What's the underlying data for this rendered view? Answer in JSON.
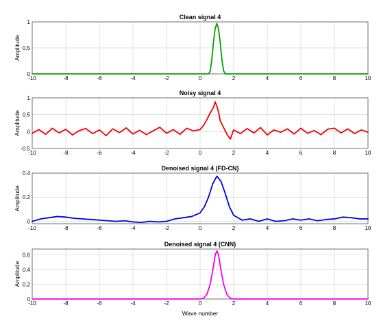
{
  "chart_data": [
    {
      "type": "line",
      "title": "Clean signal 4",
      "ylabel": "Amplitude",
      "xlabel": "",
      "xlim": [
        -10,
        10
      ],
      "ylim": [
        0,
        1
      ],
      "xticks": [
        -10,
        -8,
        -6,
        -4,
        -2,
        0,
        2,
        4,
        6,
        8,
        10
      ],
      "yticks": [
        0,
        0.5,
        1
      ],
      "ytick_labels": [
        "0",
        "0.5",
        "1"
      ],
      "grid": true,
      "color": "#00a000",
      "series": [
        {
          "x": [
            -10,
            0.5,
            0.6,
            0.7,
            0.8,
            0.9,
            1.0,
            1.1,
            1.2,
            1.3,
            1.4,
            1.5,
            10
          ],
          "y": [
            0,
            0,
            0.05,
            0.28,
            0.62,
            0.88,
            0.97,
            0.86,
            0.6,
            0.27,
            0.06,
            0,
            0
          ]
        }
      ]
    },
    {
      "type": "line",
      "title": "Noisy signal 4",
      "ylabel": "Amplitude",
      "xlabel": "",
      "xlim": [
        -10,
        10
      ],
      "ylim": [
        -0.5,
        1
      ],
      "xticks": [
        -10,
        -8,
        -6,
        -4,
        -2,
        0,
        2,
        4,
        6,
        8,
        10
      ],
      "yticks": [
        -0.5,
        0,
        0.5,
        1
      ],
      "ytick_labels": [
        "-0.5",
        "0",
        "0.5",
        "1"
      ],
      "grid": true,
      "color": "#ee0000",
      "series": [
        {
          "x": [
            -10,
            -9.6,
            -9.2,
            -8.8,
            -8.4,
            -8.0,
            -7.6,
            -7.2,
            -6.8,
            -6.4,
            -6.0,
            -5.6,
            -5.2,
            -4.8,
            -4.4,
            -4.0,
            -3.6,
            -3.2,
            -2.8,
            -2.4,
            -2.0,
            -1.6,
            -1.2,
            -0.8,
            -0.4,
            0.0,
            0.2,
            0.4,
            0.6,
            0.8,
            0.9,
            1.0,
            1.1,
            1.2,
            1.4,
            1.6,
            1.8,
            2.0,
            2.4,
            2.8,
            3.2,
            3.6,
            4.0,
            4.4,
            4.8,
            5.2,
            5.6,
            6.0,
            6.4,
            6.8,
            7.2,
            7.6,
            8.0,
            8.4,
            8.8,
            9.2,
            9.6,
            10
          ],
          "y": [
            -0.05,
            0.06,
            -0.08,
            0.1,
            -0.04,
            0.07,
            -0.1,
            0.03,
            0.09,
            -0.06,
            0.05,
            -0.12,
            0.08,
            -0.03,
            0.11,
            -0.07,
            0.04,
            -0.09,
            0.02,
            0.13,
            -0.05,
            0.06,
            -0.08,
            0.1,
            0.02,
            0.06,
            0.18,
            0.35,
            0.55,
            0.72,
            0.88,
            0.75,
            0.58,
            0.32,
            0.12,
            -0.08,
            -0.22,
            0.05,
            -0.06,
            0.09,
            -0.04,
            0.12,
            -0.1,
            0.05,
            -0.02,
            0.08,
            -0.07,
            0.1,
            -0.05,
            0.03,
            -0.09,
            0.07,
            0.1,
            -0.04,
            0.08,
            -0.06,
            0.05,
            -0.02
          ]
        }
      ]
    },
    {
      "type": "line",
      "title": "Denoised signal 4 (FD-CN)",
      "ylabel": "Amplitude",
      "xlabel": "",
      "xlim": [
        -10,
        10
      ],
      "ylim": [
        -0.02,
        0.4
      ],
      "xticks": [
        -10,
        -8,
        -6,
        -4,
        -2,
        0,
        2,
        4,
        6,
        8,
        10
      ],
      "yticks": [
        0,
        0.2,
        0.4
      ],
      "ytick_labels": [
        "0",
        "0.2",
        "0.4"
      ],
      "grid": true,
      "color": "#0000dd",
      "series": [
        {
          "x": [
            -10,
            -9.5,
            -9.0,
            -8.5,
            -8.0,
            -7.5,
            -7.0,
            -6.5,
            -6.0,
            -5.5,
            -5.0,
            -4.5,
            -4.0,
            -3.5,
            -3.0,
            -2.5,
            -2.0,
            -1.5,
            -1.0,
            -0.5,
            0.0,
            0.25,
            0.5,
            0.75,
            1.0,
            1.25,
            1.5,
            1.75,
            2.0,
            2.5,
            3.0,
            3.5,
            4.0,
            4.5,
            5.0,
            5.5,
            6.0,
            6.5,
            7.0,
            7.5,
            8.0,
            8.5,
            9.0,
            9.5,
            10
          ],
          "y": [
            0.0,
            0.02,
            0.03,
            0.04,
            0.035,
            0.025,
            0.02,
            0.015,
            0.01,
            0.005,
            0.0,
            0.005,
            -0.005,
            -0.01,
            0.0,
            -0.005,
            0.0,
            0.02,
            0.03,
            0.04,
            0.07,
            0.12,
            0.2,
            0.31,
            0.375,
            0.33,
            0.23,
            0.12,
            0.05,
            0.01,
            0.02,
            0.0,
            0.02,
            0.0,
            0.005,
            0.02,
            0.01,
            0.02,
            0.005,
            0.015,
            0.02,
            0.035,
            0.03,
            0.02,
            0.02
          ]
        }
      ]
    },
    {
      "type": "line",
      "title": "Denoised signal 4 (CNN)",
      "ylabel": "Amplitude",
      "xlabel": "Wave number",
      "xlim": [
        -10,
        10
      ],
      "ylim": [
        0,
        0.68
      ],
      "xticks": [
        -10,
        -8,
        -6,
        -4,
        -2,
        0,
        2,
        4,
        6,
        8,
        10
      ],
      "yticks": [
        0,
        0.2,
        0.4,
        0.6
      ],
      "ytick_labels": [
        "0",
        "0.2",
        "0.4",
        "0.6"
      ],
      "grid": true,
      "color": "#ee00ee",
      "series": [
        {
          "x": [
            -10,
            0.0,
            0.2,
            0.4,
            0.6,
            0.8,
            0.9,
            1.0,
            1.1,
            1.2,
            1.4,
            1.6,
            1.8,
            2.0,
            10
          ],
          "y": [
            0,
            0,
            0.01,
            0.06,
            0.2,
            0.45,
            0.6,
            0.655,
            0.6,
            0.45,
            0.2,
            0.06,
            0.01,
            0,
            0
          ]
        }
      ]
    }
  ]
}
